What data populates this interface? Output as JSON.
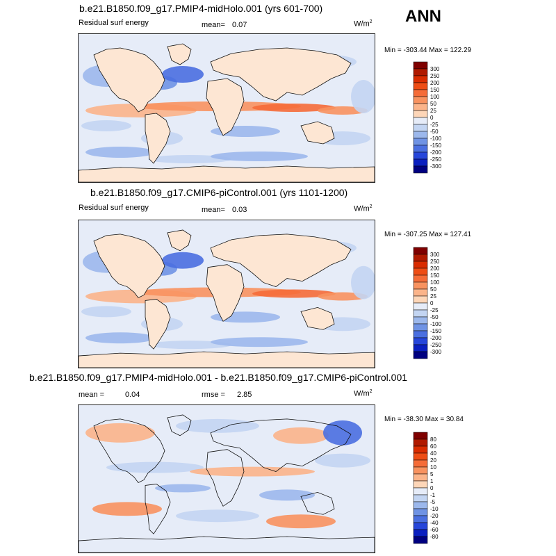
{
  "season": "ANN",
  "panels": [
    {
      "title": "b.e21.B1850.f09_g17.PMIP4-midHolo.001 (yrs 601-700)",
      "variable": "Residual surf energy",
      "stat_label": "mean=",
      "stat_value": "0.07",
      "units": "W/m",
      "units_exp": "2",
      "minmax": "Min = -303.44 Max = 122.29"
    },
    {
      "title": "b.e21.B1850.f09_g17.CMIP6-piControl.001 (yrs 1101-1200)",
      "variable": "Residual surf energy",
      "stat_label": "mean=",
      "stat_value": "0.03",
      "units": "W/m",
      "units_exp": "2",
      "minmax": "Min = -307.25 Max = 127.41"
    },
    {
      "title": "b.e21.B1850.f09_g17.PMIP4-midHolo.001 - b.e21.B1850.f09_g17.CMIP6-piControl.001",
      "mean_label": "mean =",
      "mean_value": "0.04",
      "rmse_label": "rmse =",
      "rmse_value": "2.85",
      "units": "W/m",
      "units_exp": "2",
      "minmax": "Min = -38.30 Max =  30.84"
    }
  ],
  "chart_data": [
    {
      "type": "heatmap",
      "title": "b.e21.B1850.f09_g17.PMIP4-midHolo.001 (yrs 601-700)",
      "variable": "Residual surf energy",
      "units": "W/m^2",
      "mean": 0.07,
      "min": -303.44,
      "max": 122.29,
      "colorbar_levels": [
        300,
        250,
        200,
        150,
        100,
        50,
        25,
        0,
        -25,
        -50,
        -100,
        -150,
        -200,
        -250,
        -300
      ],
      "colorbar_colors": [
        "#7f0000",
        "#b01a00",
        "#d92c00",
        "#ee4d15",
        "#f56c38",
        "#f8925f",
        "#fbb48a",
        "#fdd6b8",
        "#e6ecf8",
        "#c3d5f2",
        "#9cb8ec",
        "#6f93e4",
        "#4a6fe0",
        "#2646da",
        "#0a1fc0",
        "#000080"
      ]
    },
    {
      "type": "heatmap",
      "title": "b.e21.B1850.f09_g17.CMIP6-piControl.001 (yrs 1101-1200)",
      "variable": "Residual surf energy",
      "units": "W/m^2",
      "mean": 0.03,
      "min": -307.25,
      "max": 127.41,
      "colorbar_levels": [
        300,
        250,
        200,
        150,
        100,
        50,
        25,
        0,
        -25,
        -50,
        -100,
        -150,
        -200,
        -250,
        -300
      ],
      "colorbar_colors": [
        "#7f0000",
        "#b01a00",
        "#d92c00",
        "#ee4d15",
        "#f56c38",
        "#f8925f",
        "#fbb48a",
        "#fdd6b8",
        "#e6ecf8",
        "#c3d5f2",
        "#9cb8ec",
        "#6f93e4",
        "#4a6fe0",
        "#2646da",
        "#0a1fc0",
        "#000080"
      ]
    },
    {
      "type": "heatmap",
      "title": "b.e21.B1850.f09_g17.PMIP4-midHolo.001 - b.e21.B1850.f09_g17.CMIP6-piControl.001",
      "units": "W/m^2",
      "mean": 0.04,
      "rmse": 2.85,
      "min": -38.3,
      "max": 30.84,
      "colorbar_levels": [
        80,
        60,
        40,
        20,
        10,
        5,
        1,
        0,
        -1,
        -5,
        -10,
        -20,
        -40,
        -60,
        -80
      ],
      "colorbar_colors": [
        "#7f0000",
        "#b01a00",
        "#d92c00",
        "#ee4d15",
        "#f56c38",
        "#f8925f",
        "#fbb48a",
        "#fdd6b8",
        "#e6ecf8",
        "#c3d5f2",
        "#9cb8ec",
        "#6f93e4",
        "#4a6fe0",
        "#2646da",
        "#0a1fc0",
        "#000080"
      ]
    }
  ]
}
